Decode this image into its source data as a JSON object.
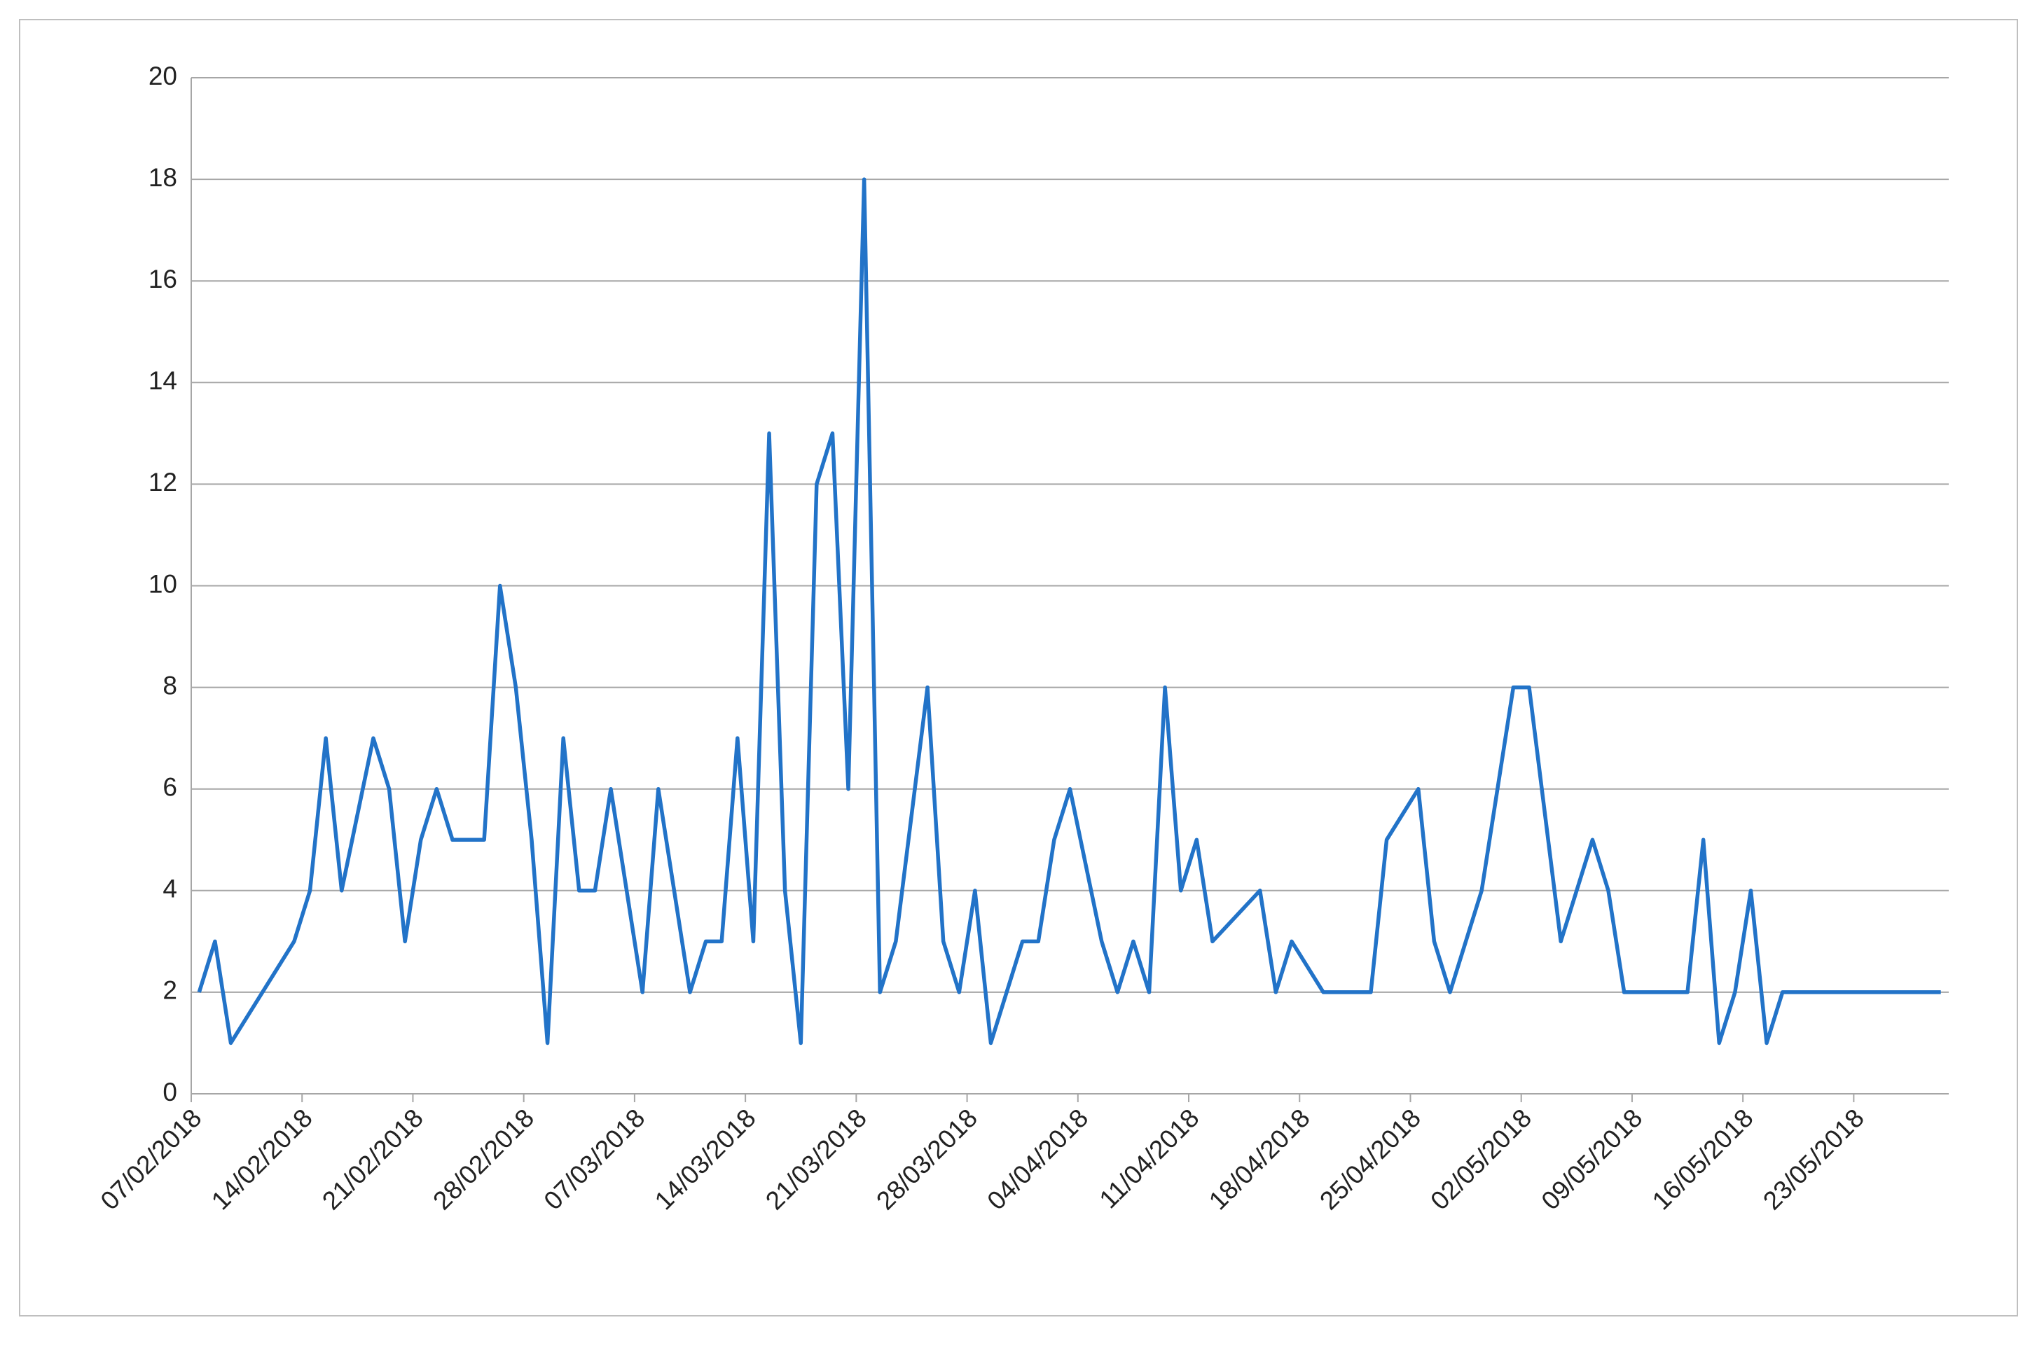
{
  "chart_data": {
    "type": "line",
    "x": [
      "2018-02-07",
      "2018-02-08",
      "2018-02-09",
      "2018-02-13",
      "2018-02-14",
      "2018-02-15",
      "2018-02-16",
      "2018-02-18",
      "2018-02-19",
      "2018-02-20",
      "2018-02-21",
      "2018-02-22",
      "2018-02-23",
      "2018-02-25",
      "2018-02-26",
      "2018-02-27",
      "2018-02-28",
      "2018-03-01",
      "2018-03-02",
      "2018-03-03",
      "2018-03-04",
      "2018-03-05",
      "2018-03-06",
      "2018-03-07",
      "2018-03-08",
      "2018-03-09",
      "2018-03-10",
      "2018-03-11",
      "2018-03-12",
      "2018-03-13",
      "2018-03-14",
      "2018-03-15",
      "2018-03-16",
      "2018-03-17",
      "2018-03-18",
      "2018-03-19",
      "2018-03-20",
      "2018-03-21",
      "2018-03-22",
      "2018-03-23",
      "2018-03-25",
      "2018-03-26",
      "2018-03-27",
      "2018-03-28",
      "2018-03-29",
      "2018-03-31",
      "2018-04-01",
      "2018-04-02",
      "2018-04-03",
      "2018-04-05",
      "2018-04-06",
      "2018-04-07",
      "2018-04-08",
      "2018-04-09",
      "2018-04-10",
      "2018-04-11",
      "2018-04-12",
      "2018-04-15",
      "2018-04-16",
      "2018-04-17",
      "2018-04-19",
      "2018-04-22",
      "2018-04-23",
      "2018-04-25",
      "2018-04-26",
      "2018-04-27",
      "2018-04-29",
      "2018-05-01",
      "2018-05-02",
      "2018-05-04",
      "2018-05-06",
      "2018-05-07",
      "2018-05-08",
      "2018-05-12",
      "2018-05-13",
      "2018-05-14",
      "2018-05-15",
      "2018-05-16",
      "2018-05-17",
      "2018-05-18",
      "2018-05-28"
    ],
    "series": [
      {
        "color": "#2273c8",
        "values": [
          2,
          3,
          1,
          3,
          4,
          7,
          4,
          7,
          6,
          3,
          5,
          6,
          5,
          5,
          10,
          8,
          5,
          1,
          7,
          4,
          4,
          6,
          4,
          2,
          6,
          4,
          2,
          3,
          3,
          7,
          3,
          13,
          4,
          1,
          12,
          13,
          6,
          18,
          2,
          3,
          8,
          3,
          2,
          4,
          1,
          3,
          3,
          5,
          6,
          3,
          2,
          3,
          2,
          8,
          4,
          5,
          3,
          4,
          2,
          3,
          2,
          2,
          5,
          6,
          3,
          2,
          4,
          8,
          8,
          3,
          5,
          4,
          2,
          2,
          5,
          1,
          2,
          4,
          1,
          2,
          2
        ]
      }
    ],
    "xlim": [
      "2018-02-07",
      "2018-05-29"
    ],
    "xticks": [
      {
        "value": "2018-02-07",
        "label": "07/02/2018"
      },
      {
        "value": "2018-02-14",
        "label": "14/02/2018"
      },
      {
        "value": "2018-02-21",
        "label": "21/02/2018"
      },
      {
        "value": "2018-02-28",
        "label": "28/02/2018"
      },
      {
        "value": "2018-03-07",
        "label": "07/03/2018"
      },
      {
        "value": "2018-03-14",
        "label": "14/03/2018"
      },
      {
        "value": "2018-03-21",
        "label": "21/03/2018"
      },
      {
        "value": "2018-03-28",
        "label": "28/03/2018"
      },
      {
        "value": "2018-04-04",
        "label": "04/04/2018"
      },
      {
        "value": "2018-04-11",
        "label": "11/04/2018"
      },
      {
        "value": "2018-04-18",
        "label": "18/04/2018"
      },
      {
        "value": "2018-04-25",
        "label": "25/04/2018"
      },
      {
        "value": "2018-05-02",
        "label": "02/05/2018"
      },
      {
        "value": "2018-05-09",
        "label": "09/05/2018"
      },
      {
        "value": "2018-05-16",
        "label": "16/05/2018"
      },
      {
        "value": "2018-05-23",
        "label": "23/05/2018"
      }
    ],
    "ylim": [
      0,
      20
    ],
    "yticks": [
      0,
      2,
      4,
      6,
      8,
      10,
      12,
      14,
      16,
      18,
      20
    ],
    "grid": true
  }
}
